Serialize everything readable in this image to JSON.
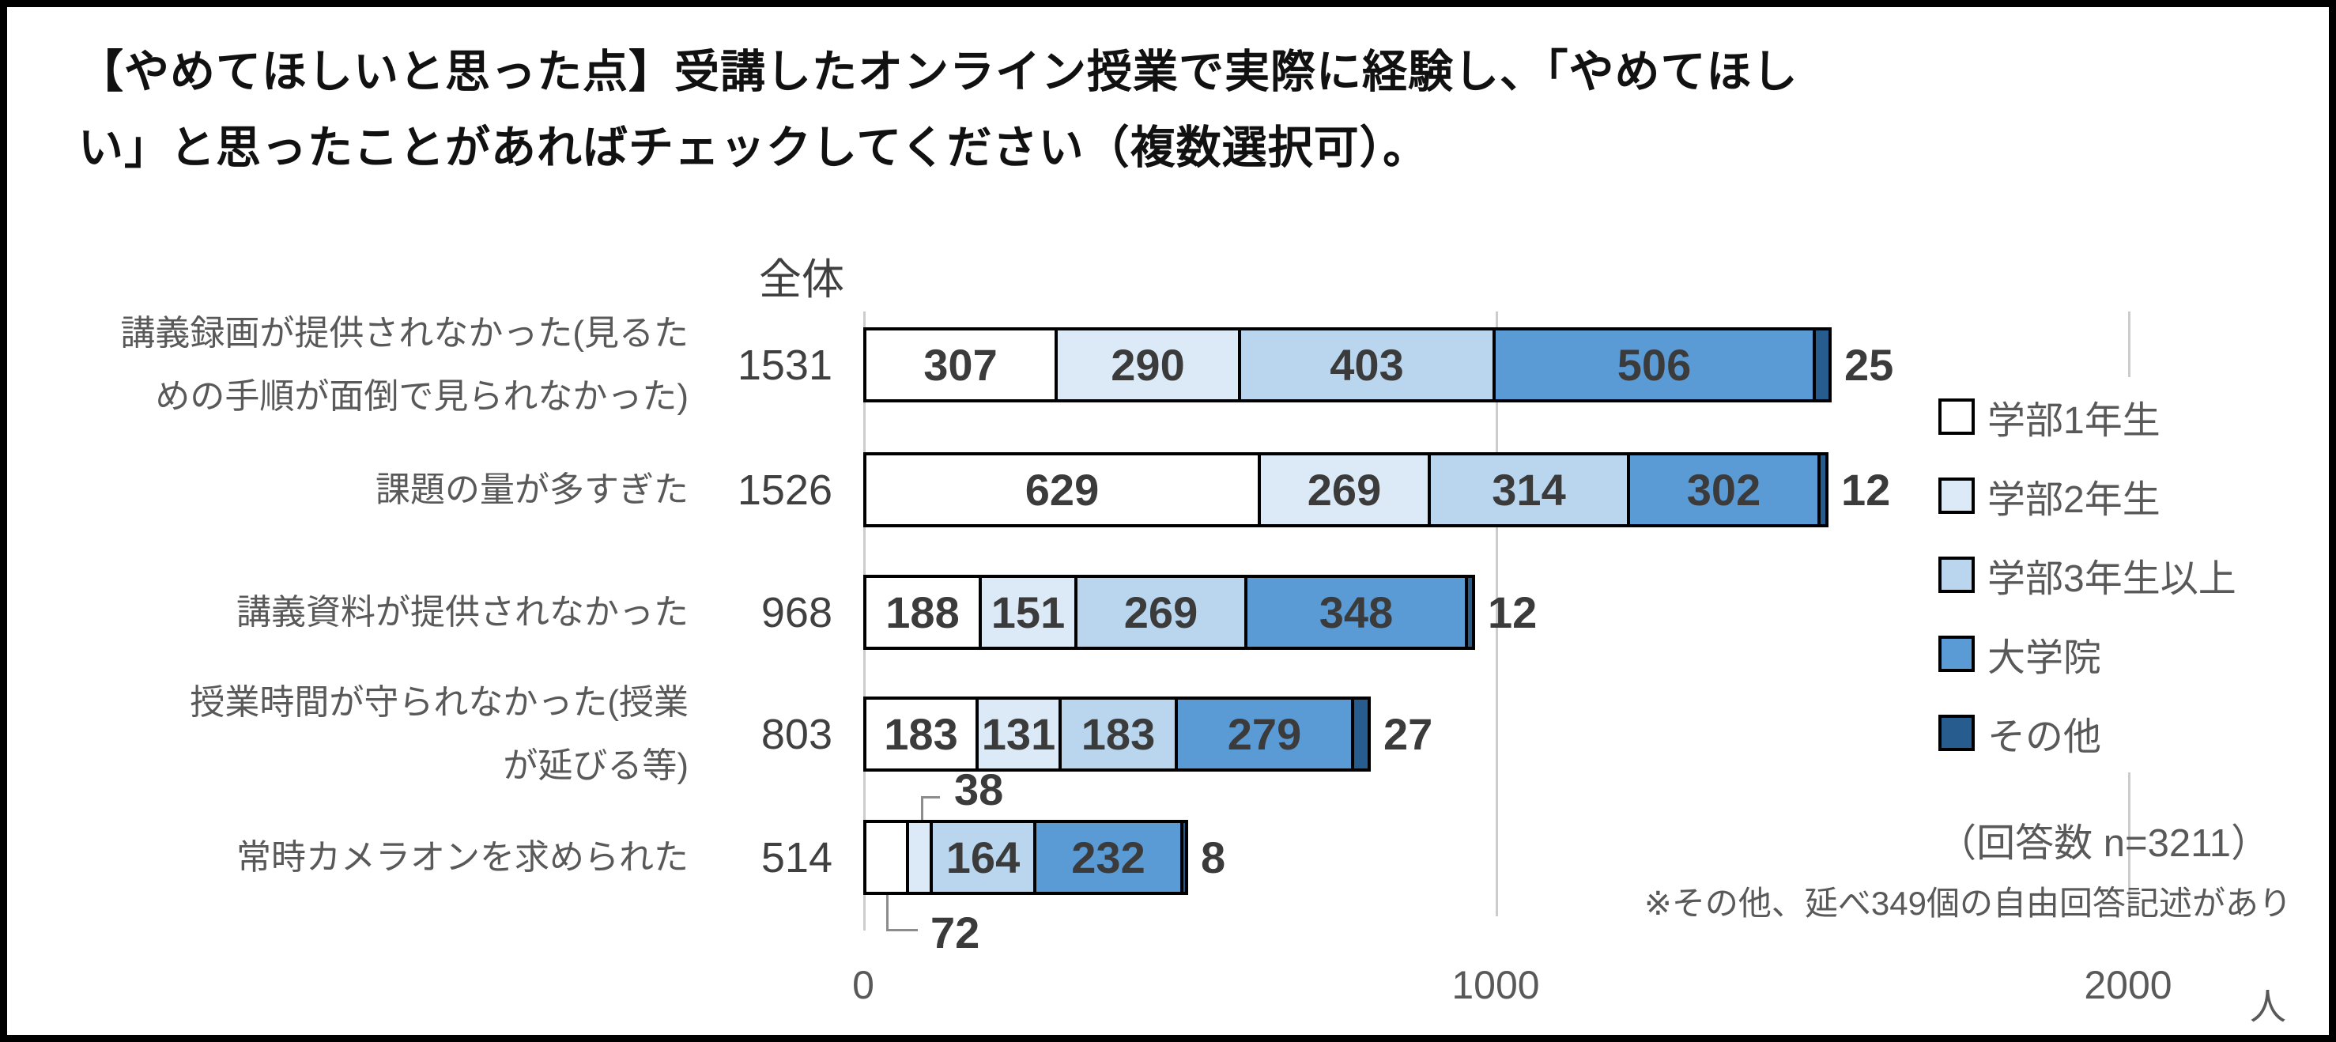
{
  "title": {
    "line1": "【やめてほしいと思った点】受講したオンライン授業で実際に経験し、「やめてほし",
    "line2": "い」と思ったことがあればチェックしてください（複数選択可）。"
  },
  "chart_data": {
    "type": "bar",
    "orientation": "horizontal",
    "stacked": true,
    "grid": "vertical-lines-on",
    "legend_position": "right",
    "total_header": "全体",
    "x_axis": {
      "ticks": [
        "0",
        "1000",
        "2000"
      ],
      "tick_values": [
        0,
        1000,
        2000
      ],
      "max": 2050,
      "unit": "人"
    },
    "series_names": [
      "学部1年生",
      "学部2年生",
      "学部3年生以上",
      "大学院",
      "その他"
    ],
    "series_colors": [
      "#ffffff",
      "#dcE9f6",
      "#bad6ee",
      "#5b9bd5",
      "#275c8f"
    ],
    "categories": [
      "講義録画が提供されなかった(見るための手順が面倒で見られなかった)",
      "課題の量が多すぎた",
      "講義資料が提供されなかった",
      "授業時間が守られなかった(授業が延びる等)",
      "常時カメラオンを求められた"
    ],
    "rows": [
      {
        "label": "講義録画が提供されなかった(見るた\nめの手順が面倒で見られなかった)",
        "total": "1531",
        "values": [
          307,
          290,
          403,
          506,
          25
        ],
        "end_label": "25"
      },
      {
        "label": "課題の量が多すぎた",
        "total": "1526",
        "values": [
          629,
          269,
          314,
          302,
          12
        ],
        "end_label": "12"
      },
      {
        "label": "講義資料が提供されなかった",
        "total": "968",
        "values": [
          188,
          151,
          269,
          348,
          12
        ],
        "end_label": "12"
      },
      {
        "label": "授業時間が守られなかった(授業\nが延びる等)",
        "total": "803",
        "values": [
          183,
          131,
          183,
          279,
          27
        ],
        "end_label": "27"
      },
      {
        "label": "常時カメラオンを求められた",
        "total": "514",
        "values": [
          72,
          38,
          164,
          232,
          8
        ],
        "end_label": "8",
        "callouts": [
          {
            "seg_index": 0,
            "text": "72",
            "position": "below"
          },
          {
            "seg_index": 1,
            "text": "38",
            "position": "above"
          }
        ]
      }
    ],
    "annotations": {
      "respondents": "（回答数 n=3211）",
      "other_note": "※その他、延べ349個の自由回答記述があり"
    }
  }
}
